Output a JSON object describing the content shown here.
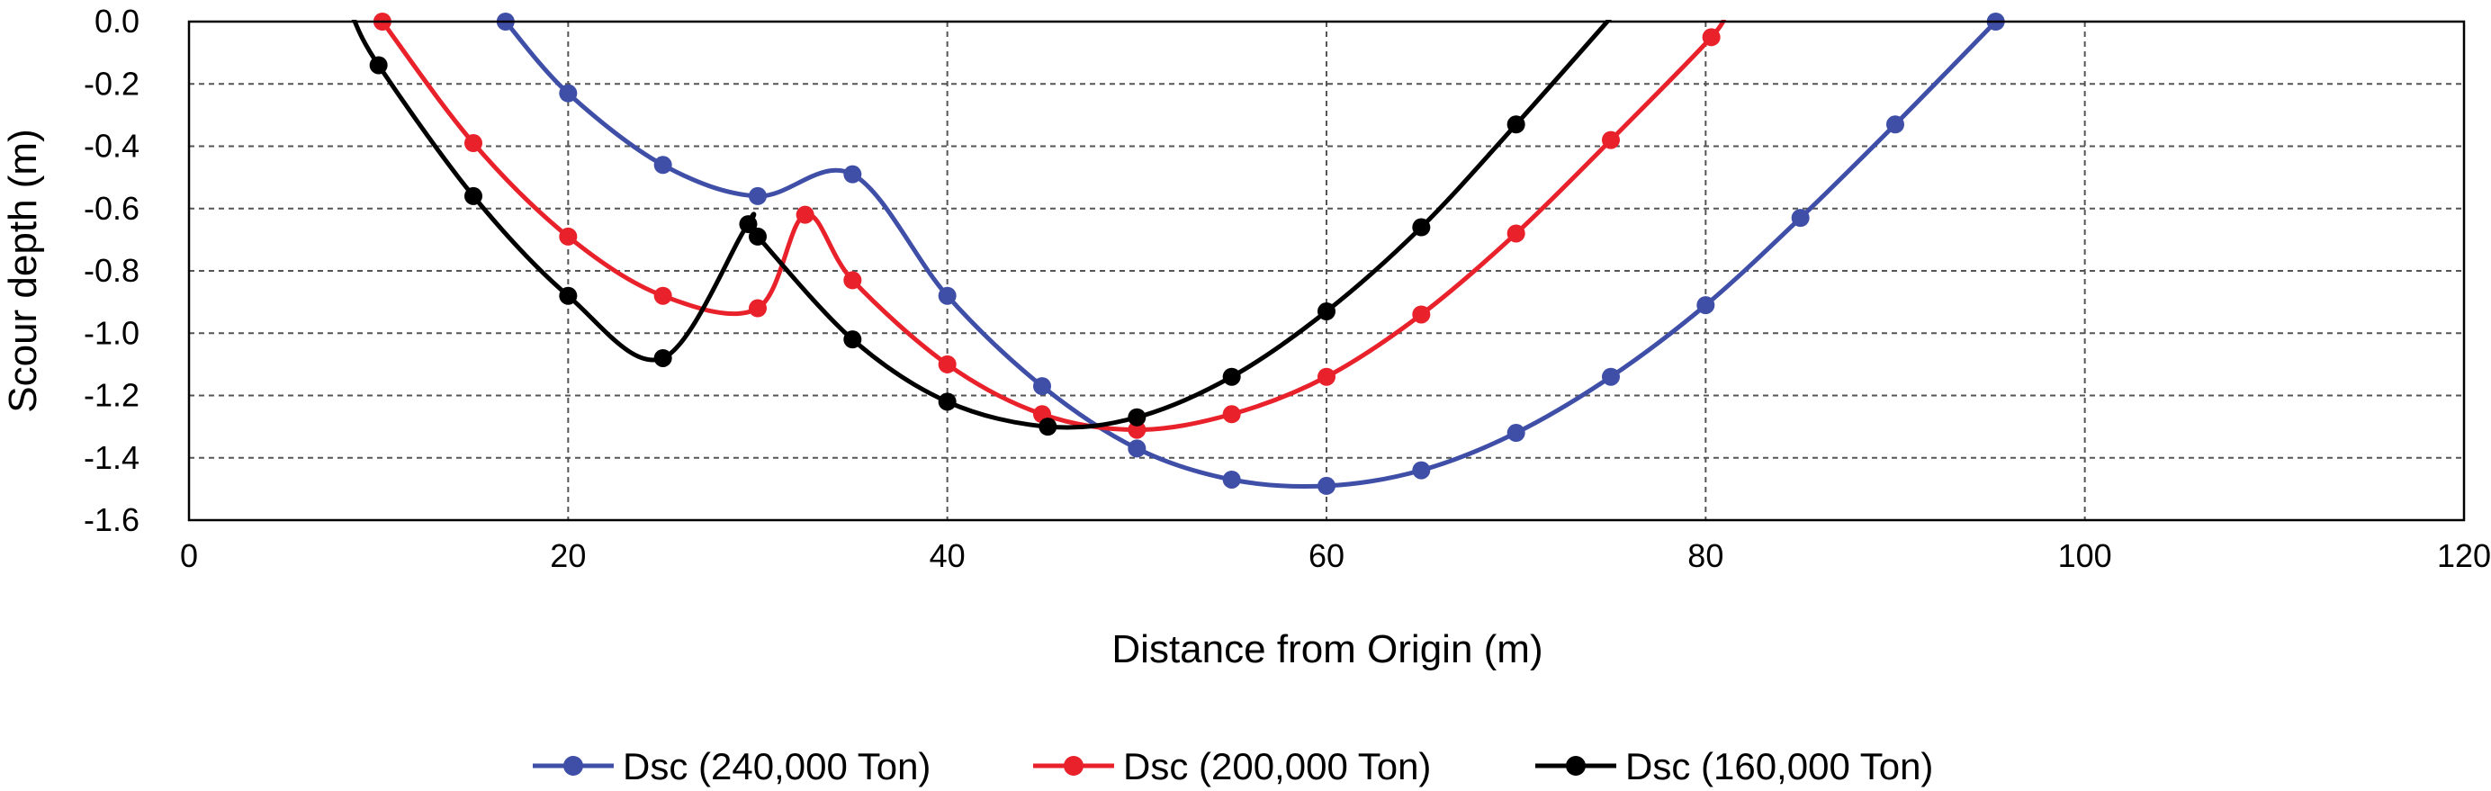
{
  "chart_data": {
    "type": "line",
    "title": "",
    "xlabel": "Distance from Origin (m)",
    "ylabel": "Scour depth (m)",
    "xlim": [
      0,
      120
    ],
    "ylim": [
      -1.6,
      0.0
    ],
    "xticks": [
      0,
      20,
      40,
      60,
      80,
      100,
      120
    ],
    "yticks": [
      0.0,
      -0.2,
      -0.4,
      -0.6,
      -0.8,
      -1.0,
      -1.2,
      -1.4,
      -1.6
    ],
    "ytick_labels": [
      "0.0",
      "-0.2",
      "-0.4",
      "-0.6",
      "-0.8",
      "-1.0",
      "-1.2",
      "-1.4",
      "-1.6"
    ],
    "grid": true,
    "legend_position": "bottom",
    "series": [
      {
        "name": "Dsc (240,000 Ton)",
        "color": "#3f4fa8",
        "x": [
          16.7,
          20,
          25,
          30,
          35,
          40,
          45,
          50,
          55,
          60,
          65,
          70,
          75,
          80,
          85,
          90,
          95.3
        ],
        "y": [
          0.0,
          -0.23,
          -0.46,
          -0.56,
          -0.49,
          -0.88,
          -1.17,
          -1.37,
          -1.47,
          -1.49,
          -1.44,
          -1.32,
          -1.14,
          -0.91,
          -0.63,
          -0.33,
          0.0
        ]
      },
      {
        "name": "Dsc (200,000 Ton)",
        "color": "#e8212b",
        "x": [
          10.2,
          15,
          20,
          25,
          30,
          32.5,
          35,
          40,
          45,
          50,
          55,
          60,
          65,
          70,
          75,
          80.3
        ],
        "y": [
          0.0,
          -0.39,
          -0.69,
          -0.88,
          -0.92,
          -0.62,
          -0.83,
          -1.1,
          -1.26,
          -1.31,
          -1.26,
          -1.14,
          -0.94,
          -0.68,
          -0.38,
          -0.05
        ]
      },
      {
        "name": "Dsc (160,000 Ton)",
        "color": "#000000",
        "x": [
          10,
          15,
          20,
          25,
          29.5,
          30,
          35,
          40,
          45.3,
          50,
          55,
          60,
          65,
          70
        ],
        "y": [
          -0.14,
          -0.56,
          -0.88,
          -1.08,
          -0.65,
          -0.69,
          -1.02,
          -1.22,
          -1.3,
          -1.27,
          -1.14,
          -0.93,
          -0.66,
          -0.33
        ]
      }
    ]
  }
}
